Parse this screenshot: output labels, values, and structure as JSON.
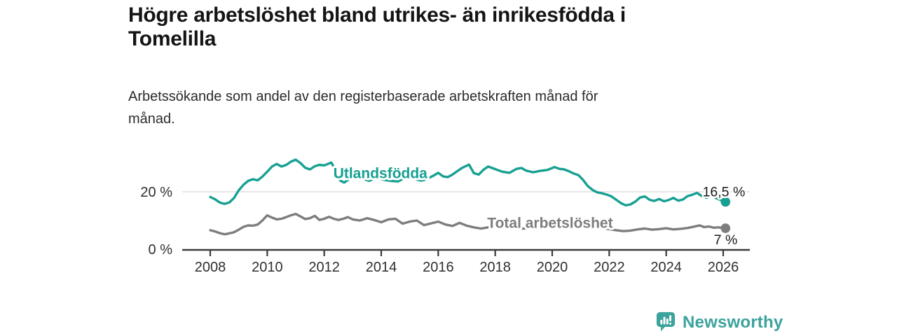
{
  "header": {
    "title": "Högre arbetslöshet bland utrikes- än inrikesfödda i Tomelilla",
    "title_lines": [
      "Högre arbetslöshet bland utrikes- än inrikesfödda i",
      "Tomelilla"
    ],
    "subtitle": "Arbetssökande som andel av den registerbaserade arbetskraften månad för månad.",
    "subtitle_lines": [
      "Arbetssökande som andel av den registerbaserade arbetskraften månad för",
      "månad."
    ]
  },
  "branding": {
    "logo_text": "Newsworthy",
    "logo_icon": "bar-chart-speech-bubble-icon",
    "logo_color": "#3ba39c"
  },
  "chart_data": {
    "type": "line",
    "title": "Högre arbetslöshet bland utrikes- än inrikesfödda i Tomelilla",
    "subtitle": "Arbetssökande som andel av den registerbaserade arbetskraften månad för månad.",
    "x_axis": {
      "ticks": [
        2008,
        2010,
        2012,
        2014,
        2016,
        2018,
        2020,
        2022,
        2024,
        2026
      ],
      "range": [
        2007.0,
        2026.9
      ]
    },
    "y_axis": {
      "unit": "%",
      "range": [
        0,
        34
      ],
      "ticks": [
        {
          "value": 0,
          "label": "0 %"
        },
        {
          "value": 20,
          "label": "20 %"
        }
      ]
    },
    "grid": {
      "show_y": true,
      "lines_at": [
        20
      ]
    },
    "legend": "inline-labels",
    "style": {
      "background": "#ffffff",
      "axis_color": "#3b3b3b",
      "grid_color": "#d8d8d8",
      "tick_label_color": "#2f2f2f",
      "value_label_color": "#1a1a1a"
    },
    "series": [
      {
        "id": "utlandsfodda",
        "name": "Utlandsfödda",
        "color": "#17a092",
        "end_label": "16,5 %",
        "end_value": 16.5,
        "label_at": [
          2012.32,
          24.8
        ],
        "end_label_offset": [
          28,
          -8
        ],
        "points": [
          [
            2008.0,
            18.2
          ],
          [
            2008.17,
            17.4
          ],
          [
            2008.33,
            16.3
          ],
          [
            2008.5,
            15.8
          ],
          [
            2008.67,
            16.3
          ],
          [
            2008.83,
            17.8
          ],
          [
            2009.0,
            20.5
          ],
          [
            2009.17,
            22.5
          ],
          [
            2009.33,
            23.8
          ],
          [
            2009.5,
            24.4
          ],
          [
            2009.67,
            24.0
          ],
          [
            2009.83,
            25.3
          ],
          [
            2010.0,
            27.0
          ],
          [
            2010.17,
            28.8
          ],
          [
            2010.33,
            29.7
          ],
          [
            2010.5,
            28.8
          ],
          [
            2010.67,
            29.4
          ],
          [
            2010.83,
            30.5
          ],
          [
            2011.0,
            31.2
          ],
          [
            2011.17,
            30.0
          ],
          [
            2011.33,
            28.4
          ],
          [
            2011.5,
            27.8
          ],
          [
            2011.67,
            28.9
          ],
          [
            2011.83,
            29.4
          ],
          [
            2012.0,
            29.2
          ],
          [
            2012.25,
            30.2
          ],
          [
            2012.4,
            27.5
          ],
          [
            2012.55,
            24.0
          ],
          [
            2012.7,
            23.2
          ],
          [
            2012.9,
            24.6
          ],
          [
            2013.08,
            25.6
          ],
          [
            2013.33,
            24.6
          ],
          [
            2013.58,
            23.8
          ],
          [
            2013.83,
            25.0
          ],
          [
            2014.08,
            24.2
          ],
          [
            2014.33,
            23.8
          ],
          [
            2014.58,
            23.6
          ],
          [
            2014.83,
            24.8
          ],
          [
            2015.08,
            25.4
          ],
          [
            2015.25,
            24.2
          ],
          [
            2015.42,
            23.9
          ],
          [
            2015.58,
            24.4
          ],
          [
            2015.83,
            25.6
          ],
          [
            2016.0,
            26.6
          ],
          [
            2016.17,
            25.4
          ],
          [
            2016.33,
            25.1
          ],
          [
            2016.5,
            26.0
          ],
          [
            2016.67,
            27.2
          ],
          [
            2016.83,
            28.3
          ],
          [
            2017.08,
            29.5
          ],
          [
            2017.25,
            26.5
          ],
          [
            2017.42,
            26.0
          ],
          [
            2017.58,
            27.6
          ],
          [
            2017.75,
            28.8
          ],
          [
            2017.92,
            28.2
          ],
          [
            2018.08,
            27.6
          ],
          [
            2018.25,
            27.0
          ],
          [
            2018.5,
            26.6
          ],
          [
            2018.75,
            28.0
          ],
          [
            2018.92,
            28.3
          ],
          [
            2019.08,
            27.4
          ],
          [
            2019.33,
            26.8
          ],
          [
            2019.58,
            27.3
          ],
          [
            2019.83,
            27.6
          ],
          [
            2020.08,
            28.6
          ],
          [
            2020.25,
            28.0
          ],
          [
            2020.42,
            27.8
          ],
          [
            2020.58,
            27.2
          ],
          [
            2020.75,
            26.4
          ],
          [
            2020.92,
            25.8
          ],
          [
            2021.08,
            24.2
          ],
          [
            2021.25,
            22.0
          ],
          [
            2021.42,
            20.6
          ],
          [
            2021.58,
            19.8
          ],
          [
            2021.75,
            19.5
          ],
          [
            2021.92,
            19.0
          ],
          [
            2022.08,
            18.4
          ],
          [
            2022.25,
            17.2
          ],
          [
            2022.42,
            16.0
          ],
          [
            2022.58,
            15.3
          ],
          [
            2022.75,
            15.6
          ],
          [
            2022.92,
            16.6
          ],
          [
            2023.08,
            18.0
          ],
          [
            2023.25,
            18.4
          ],
          [
            2023.42,
            17.2
          ],
          [
            2023.58,
            16.8
          ],
          [
            2023.75,
            17.5
          ],
          [
            2023.92,
            16.7
          ],
          [
            2024.08,
            17.1
          ],
          [
            2024.25,
            17.9
          ],
          [
            2024.42,
            16.9
          ],
          [
            2024.58,
            17.3
          ],
          [
            2024.75,
            18.5
          ],
          [
            2024.92,
            19.0
          ],
          [
            2025.08,
            19.6
          ],
          [
            2025.25,
            18.5
          ],
          [
            2025.42,
            17.9
          ],
          [
            2025.58,
            18.9
          ],
          [
            2025.75,
            17.8
          ],
          [
            2025.92,
            17.1
          ],
          [
            2026.08,
            16.5
          ]
        ]
      },
      {
        "id": "total-arbetsloshet",
        "name": "Total arbetslöshet",
        "color": "#7d7d7d",
        "end_label": "7 %",
        "end_value": 7,
        "label_at": [
          2017.72,
          7.4
        ],
        "end_label_offset": [
          17,
          23
        ],
        "points": [
          [
            2008.0,
            6.6
          ],
          [
            2008.17,
            6.2
          ],
          [
            2008.33,
            5.6
          ],
          [
            2008.5,
            5.2
          ],
          [
            2008.67,
            5.5
          ],
          [
            2008.83,
            5.9
          ],
          [
            2009.0,
            6.8
          ],
          [
            2009.17,
            7.8
          ],
          [
            2009.33,
            8.3
          ],
          [
            2009.5,
            8.2
          ],
          [
            2009.67,
            8.6
          ],
          [
            2009.83,
            10.0
          ],
          [
            2010.0,
            11.8
          ],
          [
            2010.17,
            11.0
          ],
          [
            2010.33,
            10.4
          ],
          [
            2010.5,
            10.6
          ],
          [
            2010.67,
            11.2
          ],
          [
            2010.83,
            11.8
          ],
          [
            2011.0,
            12.3
          ],
          [
            2011.17,
            11.4
          ],
          [
            2011.33,
            10.5
          ],
          [
            2011.5,
            10.8
          ],
          [
            2011.67,
            11.6
          ],
          [
            2011.83,
            10.2
          ],
          [
            2012.0,
            10.6
          ],
          [
            2012.17,
            11.3
          ],
          [
            2012.33,
            10.6
          ],
          [
            2012.5,
            10.2
          ],
          [
            2012.67,
            10.6
          ],
          [
            2012.83,
            11.2
          ],
          [
            2013.0,
            10.4
          ],
          [
            2013.25,
            10.0
          ],
          [
            2013.5,
            10.8
          ],
          [
            2013.75,
            10.2
          ],
          [
            2014.0,
            9.4
          ],
          [
            2014.25,
            10.4
          ],
          [
            2014.5,
            10.6
          ],
          [
            2014.75,
            8.9
          ],
          [
            2015.0,
            9.6
          ],
          [
            2015.25,
            10.0
          ],
          [
            2015.5,
            8.4
          ],
          [
            2015.75,
            9.0
          ],
          [
            2016.0,
            9.6
          ],
          [
            2016.25,
            8.6
          ],
          [
            2016.5,
            8.1
          ],
          [
            2016.75,
            9.2
          ],
          [
            2017.0,
            8.2
          ],
          [
            2017.25,
            7.6
          ],
          [
            2017.5,
            7.2
          ],
          [
            2017.75,
            7.6
          ],
          [
            2018.0,
            8.0
          ],
          [
            2018.5,
            7.4
          ],
          [
            2019.0,
            7.2
          ],
          [
            2019.5,
            7.6
          ],
          [
            2020.0,
            8.2
          ],
          [
            2020.33,
            9.6
          ],
          [
            2020.67,
            9.0
          ],
          [
            2021.0,
            8.4
          ],
          [
            2021.5,
            7.6
          ],
          [
            2022.0,
            7.0
          ],
          [
            2022.25,
            6.6
          ],
          [
            2022.5,
            6.3
          ],
          [
            2022.75,
            6.5
          ],
          [
            2023.0,
            6.9
          ],
          [
            2023.25,
            7.2
          ],
          [
            2023.5,
            6.8
          ],
          [
            2023.75,
            7.0
          ],
          [
            2024.0,
            7.3
          ],
          [
            2024.25,
            6.9
          ],
          [
            2024.5,
            7.1
          ],
          [
            2024.75,
            7.4
          ],
          [
            2025.0,
            7.9
          ],
          [
            2025.17,
            8.3
          ],
          [
            2025.33,
            7.7
          ],
          [
            2025.5,
            7.9
          ],
          [
            2025.67,
            7.5
          ],
          [
            2025.83,
            7.6
          ],
          [
            2026.0,
            7.4
          ],
          [
            2026.08,
            7.3
          ]
        ]
      }
    ]
  }
}
